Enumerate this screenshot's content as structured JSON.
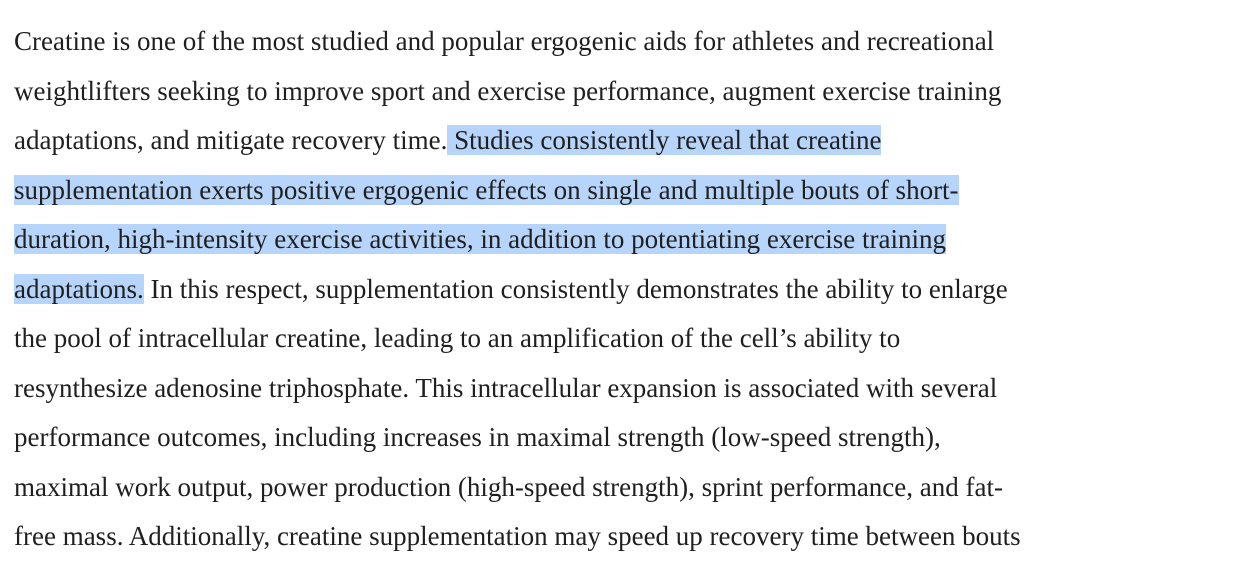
{
  "paragraph": {
    "lines": [
      {
        "pre": "Creatine is one of the most studied and popular ergogenic aids for athletes and recreational",
        "sel": "",
        "post": ""
      },
      {
        "pre": "weightlifters seeking to improve sport and exercise performance, augment exercise training",
        "sel": "",
        "post": ""
      },
      {
        "pre": "adaptations, and mitigate recovery time.",
        "sel": " Studies consistently reveal that creatine",
        "post": ""
      },
      {
        "pre": "",
        "sel": "supplementation exerts positive ergogenic effects on single and multiple bouts of short-",
        "post": ""
      },
      {
        "pre": "",
        "sel": "duration, high-intensity exercise activities, in addition to potentiating exercise training",
        "post": ""
      },
      {
        "pre": "",
        "sel": "adaptations.",
        "post": " In this respect, supplementation consistently demonstrates the ability to enlarge"
      },
      {
        "pre": "the pool of intracellular creatine, leading to an amplification of the cell’s ability to",
        "sel": "",
        "post": ""
      },
      {
        "pre": "resynthesize adenosine triphosphate. This intracellular expansion is associated with several",
        "sel": "",
        "post": ""
      },
      {
        "pre": "performance outcomes, including increases in maximal strength (low-speed strength),",
        "sel": "",
        "post": ""
      },
      {
        "pre": "maximal work output, power production (high-speed strength), sprint performance, and fat-",
        "sel": "",
        "post": ""
      },
      {
        "pre": "free mass. Additionally, creatine supplementation may speed up recovery time between bouts",
        "sel": "",
        "post": ""
      }
    ]
  },
  "colors": {
    "text": "#1f1f1f",
    "selection": "#b7d5fb",
    "background": "#ffffff"
  }
}
